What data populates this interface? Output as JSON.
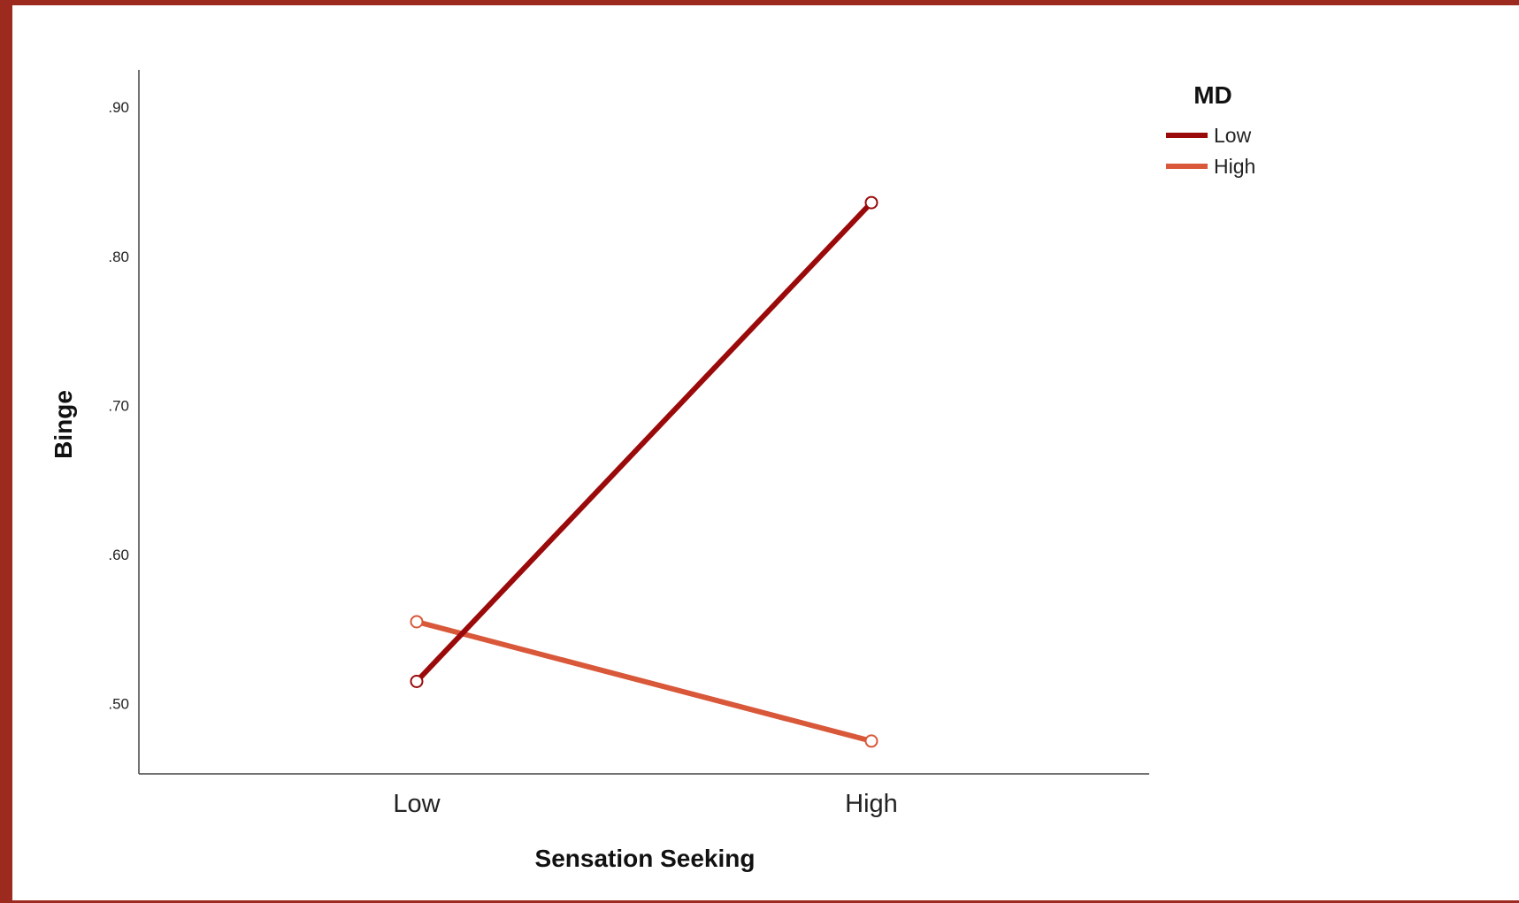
{
  "chart_data": {
    "type": "line",
    "title": "",
    "xlabel": "Sensation Seeking",
    "ylabel": "Binge",
    "categories": [
      "Low",
      "High"
    ],
    "y_ticks": [
      ".50",
      ".60",
      ".70",
      ".80",
      ".90"
    ],
    "y_tick_values": [
      0.5,
      0.6,
      0.7,
      0.8,
      0.9
    ],
    "ylim": [
      0.453,
      0.925
    ],
    "grid": false,
    "legend": {
      "title": "MD",
      "placement": "top-right"
    },
    "series": [
      {
        "name": "Low",
        "color": "#9b0a0a",
        "values": [
          0.515,
          0.836
        ]
      },
      {
        "name": "High",
        "color": "#d9583a",
        "values": [
          0.555,
          0.475
        ]
      }
    ]
  }
}
